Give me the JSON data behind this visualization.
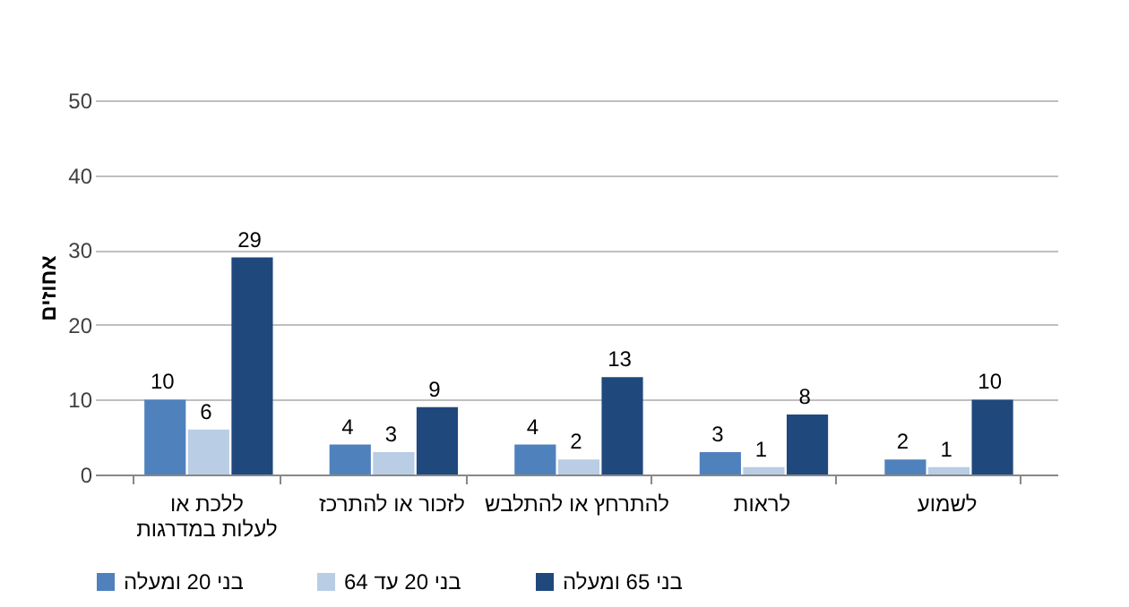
{
  "chart_data": {
    "type": "bar",
    "ylabel": "אחוזים",
    "categories": [
      "ללכת או לעלות במדרגות",
      "לזכור או להתרכז",
      "להתרחץ או להתלבש",
      "לראות",
      "לשמוע"
    ],
    "series": [
      {
        "name": "בני 20 ומעלה",
        "color": "#4f81bd",
        "values": [
          10,
          4,
          4,
          3,
          2
        ]
      },
      {
        "name": "בני 20 עד 64",
        "color": "#b9cde5",
        "values": [
          6,
          3,
          2,
          1,
          1
        ]
      },
      {
        "name": "בני 65 ומעלה",
        "color": "#1f497d",
        "values": [
          29,
          9,
          13,
          8,
          10
        ]
      }
    ],
    "ylim": [
      0,
      50
    ],
    "yticks": [
      0,
      10,
      20,
      30,
      40,
      50
    ],
    "grid": "y",
    "legend": "bottom",
    "data_labels": true
  }
}
